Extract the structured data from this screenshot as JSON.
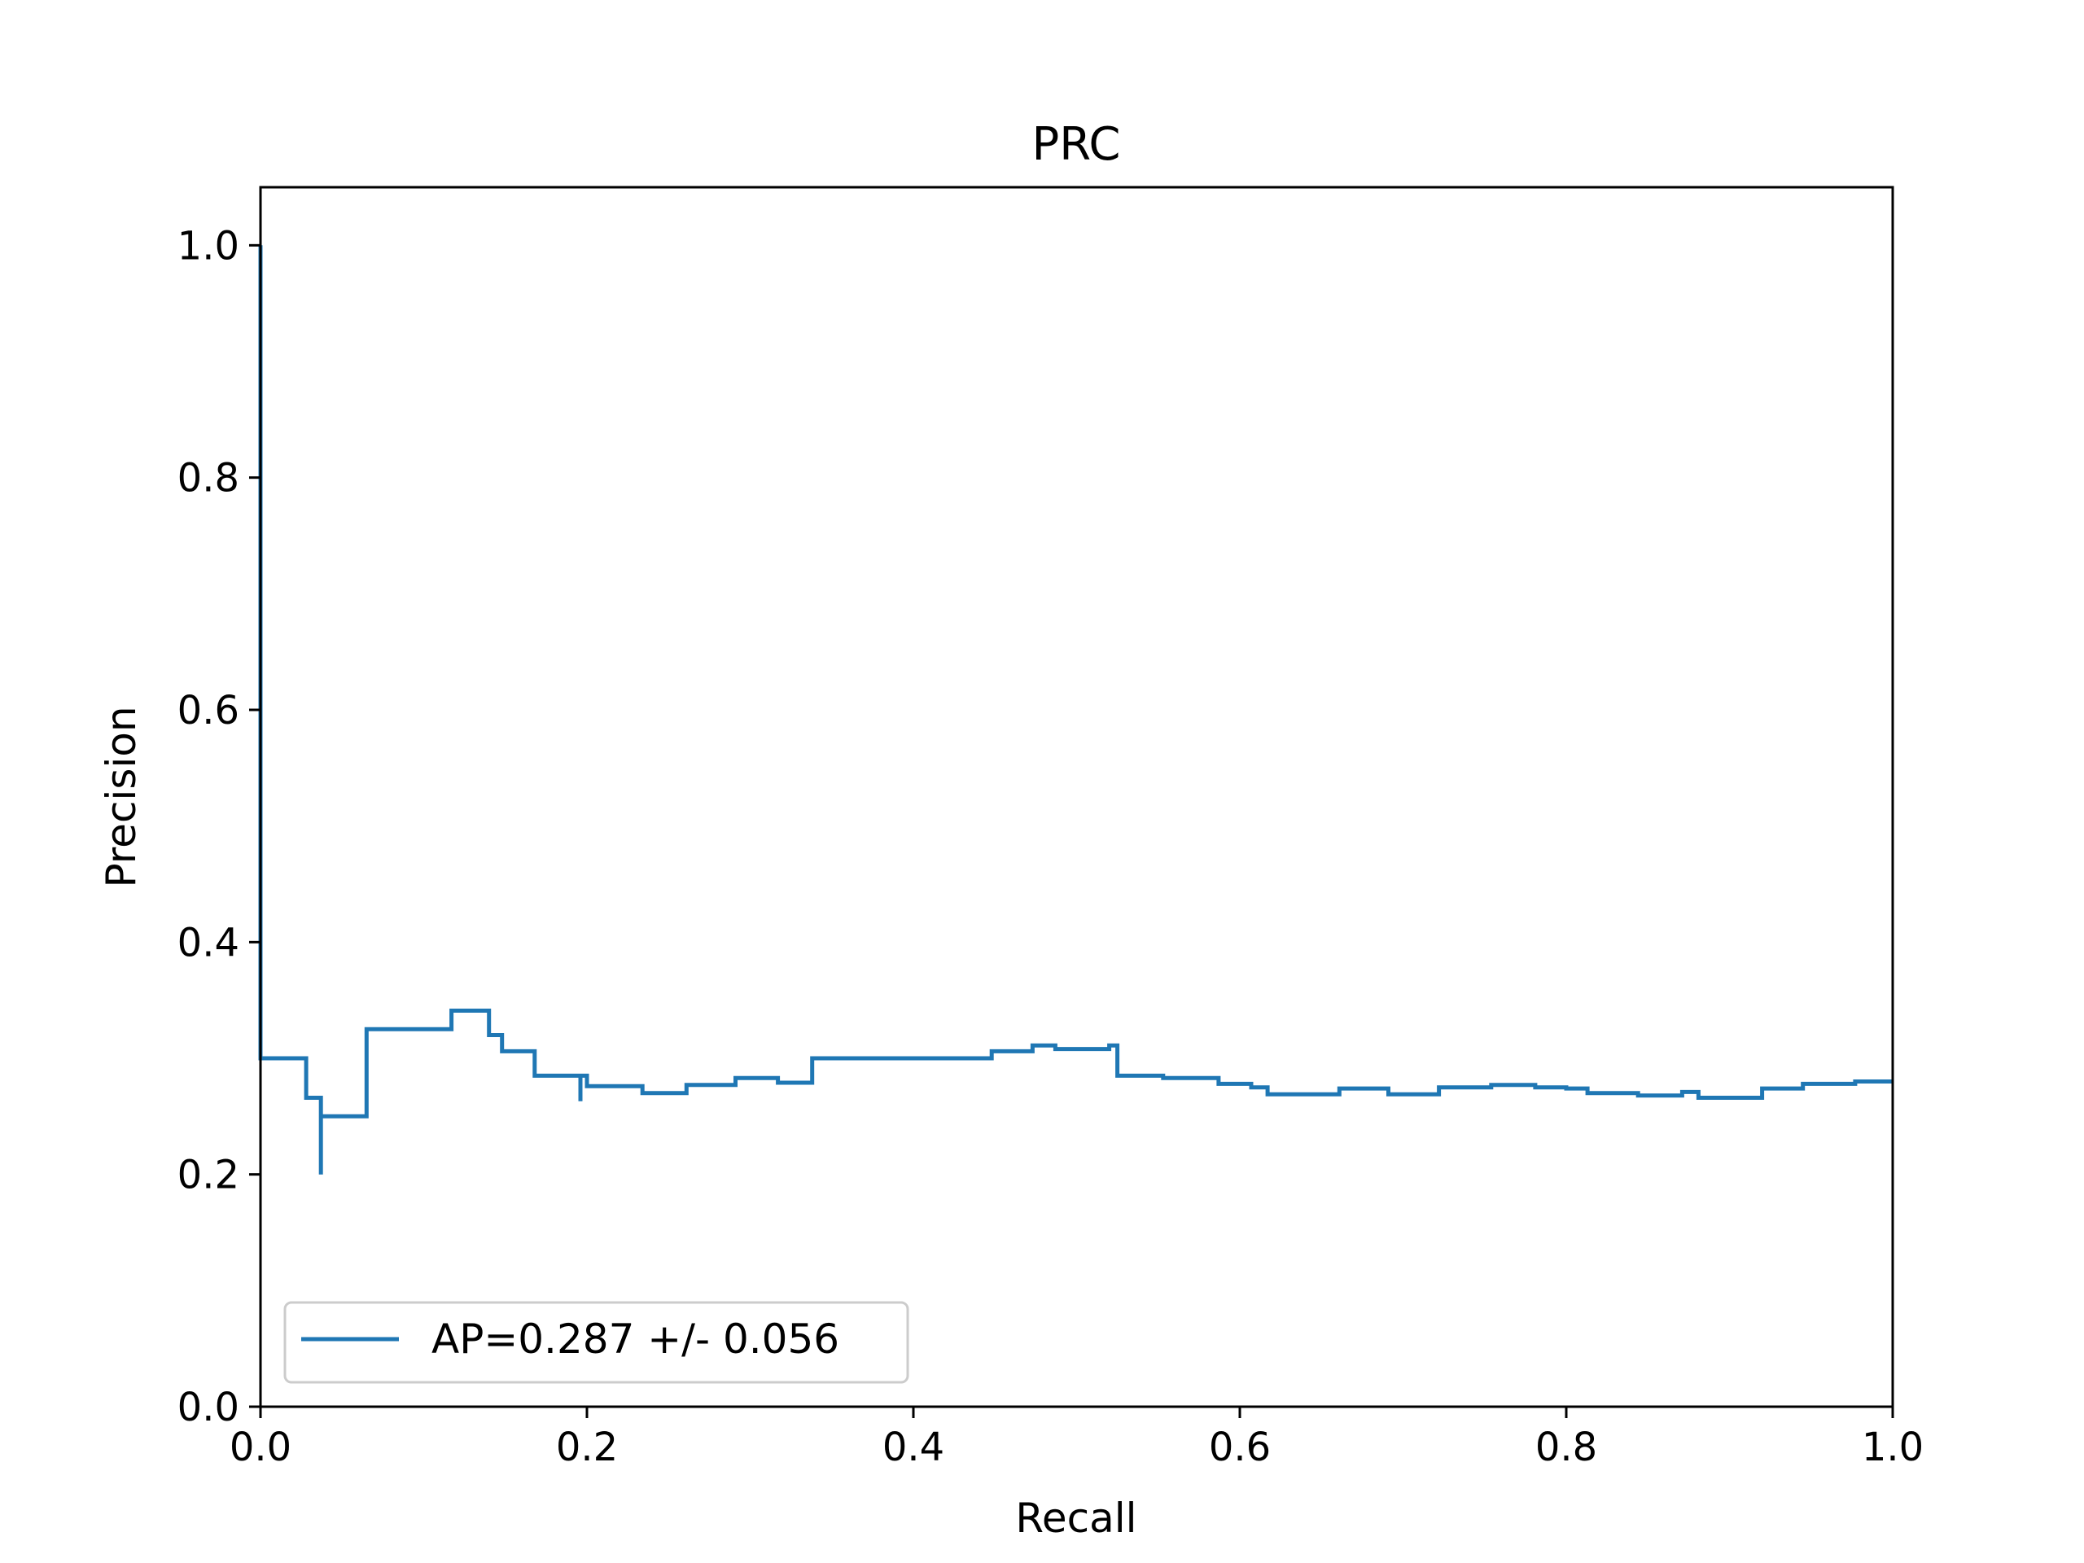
{
  "chart_data": {
    "type": "line",
    "drawstyle": "steps-post",
    "title": "PRC",
    "xlabel": "Recall",
    "ylabel": "Precision",
    "xlim": [
      0.0,
      1.0
    ],
    "ylim": [
      0.0,
      1.05
    ],
    "xticks": [
      0.0,
      0.2,
      0.4,
      0.6,
      0.8,
      1.0
    ],
    "xtick_labels": [
      "0.0",
      "0.2",
      "0.4",
      "0.6",
      "0.8",
      "1.0"
    ],
    "yticks": [
      0.0,
      0.2,
      0.4,
      0.6,
      0.8,
      1.0
    ],
    "ytick_labels": [
      "0.0",
      "0.2",
      "0.4",
      "0.6",
      "0.8",
      "1.0"
    ],
    "grid": false,
    "legend_position": "lower-left",
    "series": [
      {
        "name": "AP=0.287 +/- 0.056",
        "color": "#1f77b4",
        "x": [
          0.0,
          0.0,
          0.028,
          0.037,
          0.037,
          0.041,
          0.065,
          0.113,
          0.117,
          0.14,
          0.148,
          0.168,
          0.196,
          0.196,
          0.2,
          0.234,
          0.261,
          0.291,
          0.317,
          0.338,
          0.393,
          0.448,
          0.473,
          0.487,
          0.52,
          0.525,
          0.553,
          0.587,
          0.607,
          0.617,
          0.661,
          0.691,
          0.722,
          0.754,
          0.781,
          0.8,
          0.813,
          0.844,
          0.871,
          0.881,
          0.92,
          0.945,
          0.977,
          1.0
        ],
        "y": [
          1.0,
          0.3,
          0.266,
          0.2,
          0.25,
          0.25,
          0.325,
          0.325,
          0.341,
          0.32,
          0.306,
          0.285,
          0.263,
          0.285,
          0.276,
          0.27,
          0.277,
          0.283,
          0.279,
          0.3,
          0.3,
          0.306,
          0.311,
          0.308,
          0.311,
          0.285,
          0.283,
          0.278,
          0.275,
          0.269,
          0.274,
          0.269,
          0.275,
          0.277,
          0.275,
          0.274,
          0.27,
          0.268,
          0.271,
          0.266,
          0.274,
          0.278,
          0.28,
          0.28
        ]
      }
    ]
  }
}
